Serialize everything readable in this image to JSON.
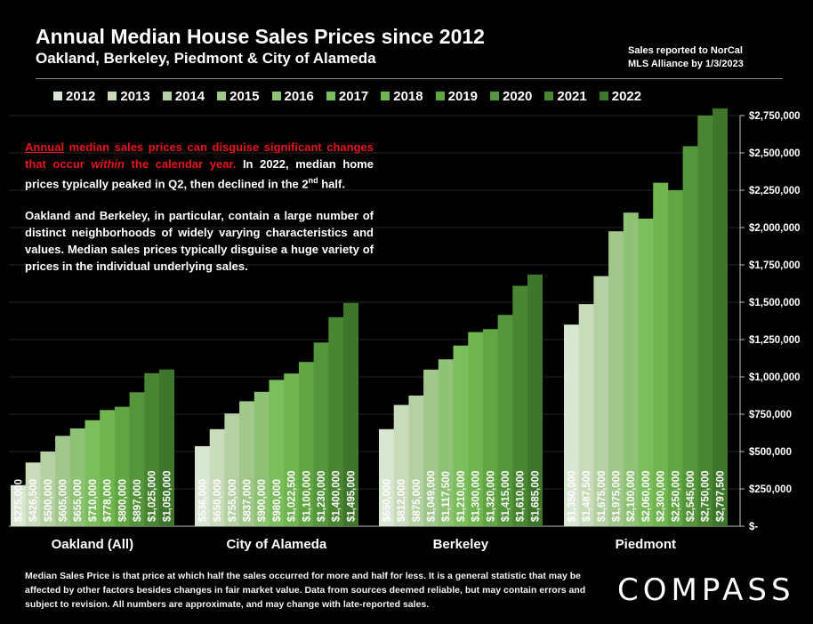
{
  "header": {
    "title": "Annual Median House Sales Prices since 2012",
    "subtitle": "Oakland, Berkeley, Piedmont & City of Alameda",
    "source_line1": "Sales reported to NorCal",
    "source_line2": "MLS Alliance by 1/3/2023"
  },
  "note": {
    "p1_annual": "Annual",
    "p1_red_a": " median sales prices can disguise significant changes that occur ",
    "p1_within": "within",
    "p1_red_b": " the calendar year.",
    "p1_white_a": " In 2022, median home prices typically peaked in Q2, then declined in the 2",
    "p1_sup": "nd",
    "p1_white_b": " half.",
    "p2": "Oakland and Berkeley, in particular, contain a large number of distinct neighborhoods of widely varying characteristics and values. Median sales prices typically disguise a huge variety of prices in the individual underlying sales."
  },
  "footnote": "Median Sales Price is that price at which half the sales occurred for more and half for less. It is a general statistic that may be affected by other factors besides changes in fair market value. Data from sources deemed reliable, but may contain errors and subject to revision.  All numbers are approximate, and may change with late-reported sales.",
  "logo": "COMPASS",
  "colors": [
    "#d9e6d2",
    "#c8dbba",
    "#b5d1a3",
    "#a2c78c",
    "#8fc275",
    "#7cbd5d",
    "#70b54f",
    "#62a543",
    "#55953b",
    "#4a8632",
    "#3e772b"
  ],
  "chart_data": {
    "type": "bar",
    "series_names": [
      "2012",
      "2013",
      "2014",
      "2015",
      "2016",
      "2017",
      "2018",
      "2019",
      "2020",
      "2021",
      "2022"
    ],
    "categories": [
      "Oakland (All)",
      "City of Alameda",
      "Berkeley",
      "Piedmont"
    ],
    "groups": [
      {
        "name": "Oakland (All)",
        "values": [
          275000,
          426500,
          500000,
          605000,
          655000,
          710000,
          778000,
          800000,
          897000,
          1025000,
          1050000
        ],
        "labels": [
          "$275,000",
          "$426,500",
          "$500,000",
          "$605,000",
          "$655,000",
          "$710,000",
          "$778,000",
          "$800,000",
          "$897,000",
          "$1,025,000",
          "$1,050,000"
        ]
      },
      {
        "name": "City of Alameda",
        "values": [
          536000,
          650000,
          755000,
          837000,
          900000,
          980000,
          1022500,
          1100000,
          1230000,
          1400000,
          1495000
        ],
        "labels": [
          "$536,000",
          "$650,000",
          "$755,000",
          "$837,000",
          "$900,000",
          "$980,000",
          "$1,022,500",
          "$1,100,000",
          "$1,230,000",
          "$1,400,000",
          "$1,495,000"
        ]
      },
      {
        "name": "Berkeley",
        "values": [
          650000,
          812000,
          875000,
          1049000,
          1117500,
          1210000,
          1300000,
          1320000,
          1415000,
          1610000,
          1685000
        ],
        "labels": [
          "$650,000",
          "$812,000",
          "$875,000",
          "$1,049,000",
          "$1,117,500",
          "$1,210,000",
          "$1,300,000",
          "$1,320,000",
          "$1,415,000",
          "$1,610,000",
          "$1,685,000"
        ]
      },
      {
        "name": "Piedmont",
        "values": [
          1350000,
          1487500,
          1675000,
          1975000,
          2100000,
          2060000,
          2300000,
          2250000,
          2545000,
          2750000,
          2797500
        ],
        "labels": [
          "$1,350,000",
          "$1,487,500",
          "$1,675,000",
          "$1,975,000",
          "$2,100,000",
          "$2,060,000",
          "$2,300,000",
          "$2,250,000",
          "$2,545,000",
          "$2,750,000",
          "$2,797,500"
        ]
      }
    ],
    "ylim": [
      0,
      2750000
    ],
    "yticks": [
      0,
      250000,
      500000,
      750000,
      1000000,
      1250000,
      1500000,
      1750000,
      2000000,
      2250000,
      2500000,
      2750000
    ],
    "ytick_labels": [
      "$-",
      "$250,000",
      "$500,000",
      "$750,000",
      "$1,000,000",
      "$1,250,000",
      "$1,500,000",
      "$1,750,000",
      "$2,000,000",
      "$2,250,000",
      "$2,500,000",
      "$2,750,000"
    ],
    "y_axis_side": "right",
    "legend_position": "top"
  }
}
